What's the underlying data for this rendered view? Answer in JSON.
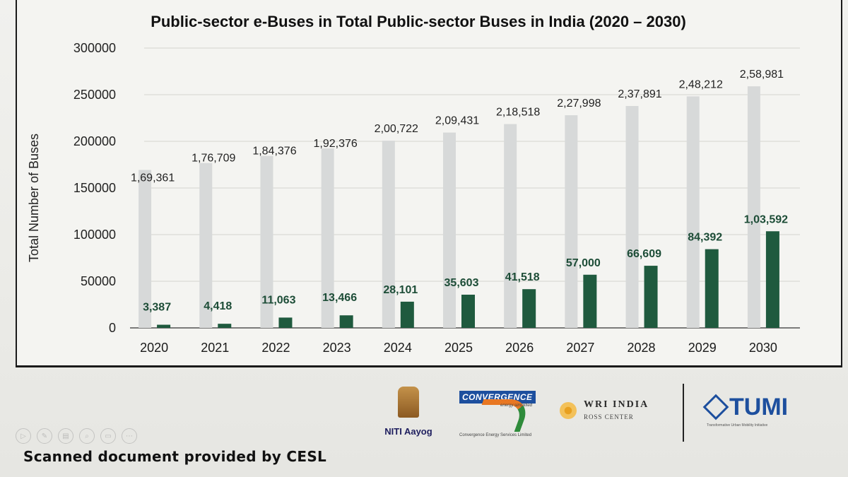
{
  "caption": "Scanned document provided by CESL",
  "logos": {
    "niti": "NITI Aayog",
    "convergence": "CONVERGENCE",
    "convergence_tagline": "energy simplified",
    "convergence_small": "Convergence Energy Services Limited",
    "wri_title": "WRI INDIA",
    "wri_sub": "ROSS CENTER",
    "tumi": "TUMI",
    "tumi_sub": "Transformative Urban Mobility Initiative"
  },
  "toolbar": {
    "icons": [
      "play-icon",
      "pen-icon",
      "print-icon",
      "zoom-icon",
      "screen-icon",
      "more-icon"
    ]
  },
  "colors": {
    "total_bar": "#d7d9d9",
    "ebus_bar": "#1f5a3e",
    "ebus_label": "#1d4d37"
  },
  "chart_data": {
    "type": "bar",
    "title": "Public-sector e-Buses in Total Public-sector Buses in India (2020 – 2030)",
    "ylabel": "Total Number of Buses",
    "xlabel": "",
    "ylim": [
      0,
      300000
    ],
    "yticks": [
      "0",
      "50000",
      "100000",
      "150000",
      "200000",
      "250000",
      "300000"
    ],
    "ytick_values": [
      0,
      50000,
      100000,
      150000,
      200000,
      250000,
      300000
    ],
    "grid": true,
    "categories": [
      "2020",
      "2021",
      "2022",
      "2023",
      "2024",
      "2025",
      "2026",
      "2027",
      "2028",
      "2029",
      "2030"
    ],
    "series": [
      {
        "values": [
          169361,
          176709,
          184376,
          192376,
          200722,
          209431,
          218518,
          227998,
          237891,
          248212,
          258981
        ],
        "labels": [
          "1,69,361",
          "1,76,709",
          "1,84,376",
          "1,92,376",
          "2,00,722",
          "2,09,431",
          "2,18,518",
          "2,27,998",
          "2,37,891",
          "2,48,212",
          "2,58,981"
        ]
      },
      {
        "values": [
          3387,
          4418,
          11063,
          13466,
          28101,
          35603,
          41518,
          57000,
          66609,
          84392,
          103592
        ],
        "labels": [
          "3,387",
          "4,418",
          "11,063",
          "13,466",
          "28,101",
          "35,603",
          "41,518",
          "57,000",
          "66,609",
          "84,392",
          "1,03,592"
        ]
      }
    ]
  }
}
